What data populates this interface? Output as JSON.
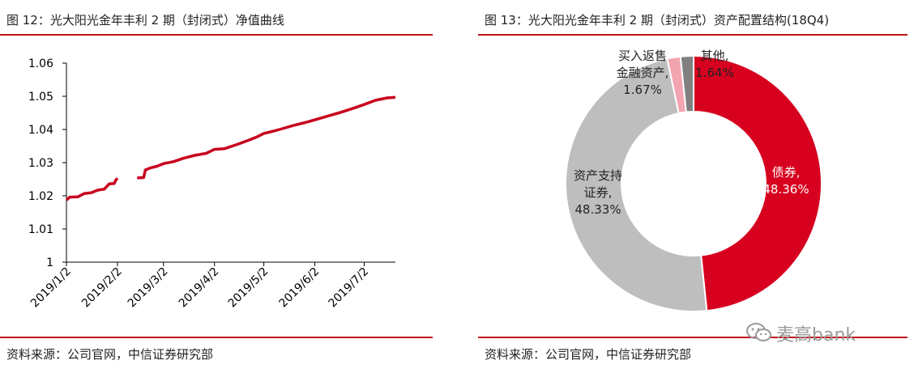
{
  "left_panel": {
    "title": "图 12：光大阳光金年丰利 2 期（封闭式）净值曲线",
    "source": "资料来源：公司官网，中信证券研究部"
  },
  "right_panel": {
    "title": "图 13：光大阳光金年丰利 2 期（封闭式）资产配置结构(18Q4)",
    "source": "资料来源：公司官网，中信证券研究部"
  },
  "watermark": {
    "text": "麦高bank",
    "icon": "wechat-icon"
  },
  "colors": {
    "accent": "#c0161c",
    "line": "#c8001e",
    "bond": "#d7001e",
    "abs": "#bebebe",
    "repo": "#f2a5b0",
    "other": "#808080"
  },
  "chart_data": [
    {
      "type": "line",
      "title": "",
      "xlabel": "",
      "ylabel": "",
      "ylim": [
        1,
        1.06
      ],
      "yticks": [
        "1.06",
        "1.05",
        "1.04",
        "1.03",
        "1.02",
        "1.01",
        "1"
      ],
      "xticks": [
        "2019/1/2",
        "2019/2/2",
        "2019/3/2",
        "2019/4/2",
        "2019/5/2",
        "2019/6/2",
        "2019/7/2"
      ],
      "xrange": [
        "2019-01-02",
        "2019-07-21"
      ],
      "grid": false,
      "segments": [
        {
          "x": [
            "2019-01-02",
            "2019-01-04",
            "2019-01-09",
            "2019-01-13",
            "2019-01-17",
            "2019-01-21",
            "2019-01-25",
            "2019-01-28",
            "2019-01-31",
            "2019-02-01",
            "2019-02-02"
          ],
          "y": [
            1.0187,
            1.0196,
            1.0197,
            1.0207,
            1.0209,
            1.0217,
            1.022,
            1.0236,
            1.0237,
            1.0247,
            1.0253
          ]
        },
        {
          "x": [
            "2019-02-14",
            "2019-02-18",
            "2019-02-19",
            "2019-02-22",
            "2019-02-26",
            "2019-03-02",
            "2019-03-08",
            "2019-03-14",
            "2019-03-21",
            "2019-03-28",
            "2019-04-02",
            "2019-04-08",
            "2019-04-16",
            "2019-04-23",
            "2019-04-28",
            "2019-05-02",
            "2019-05-08",
            "2019-05-15",
            "2019-05-20",
            "2019-05-28",
            "2019-06-04",
            "2019-06-11",
            "2019-06-18",
            "2019-06-26",
            "2019-07-02",
            "2019-07-09",
            "2019-07-16",
            "2019-07-21"
          ],
          "y": [
            1.0254,
            1.0255,
            1.0278,
            1.0284,
            1.0289,
            1.0297,
            1.0303,
            1.0313,
            1.0322,
            1.0328,
            1.034,
            1.0342,
            1.0355,
            1.0368,
            1.0378,
            1.0388,
            1.0395,
            1.0405,
            1.0412,
            1.0422,
            1.0432,
            1.0442,
            1.0452,
            1.0465,
            1.0475,
            1.0488,
            1.0495,
            1.0497
          ]
        }
      ]
    },
    {
      "type": "pie",
      "title": "",
      "donut": true,
      "slices": [
        {
          "label": "债券,",
          "value_label": "48.36%",
          "value": 48.36
        },
        {
          "label": "资产支持证券,",
          "value_label": "48.33%",
          "value": 48.33
        },
        {
          "label": "买入返售金融资产,",
          "value_label": "1.67%",
          "value": 1.67
        },
        {
          "label": "其他,",
          "value_label": "1.64%",
          "value": 1.64
        }
      ],
      "slice_label_lines": [
        [
          "债券,",
          "48.36%"
        ],
        [
          "资产支持",
          "证券,",
          "48.33%"
        ],
        [
          "买入返售",
          "金融资产,",
          "1.67%"
        ],
        [
          "其他,",
          "1.64%"
        ]
      ]
    }
  ]
}
